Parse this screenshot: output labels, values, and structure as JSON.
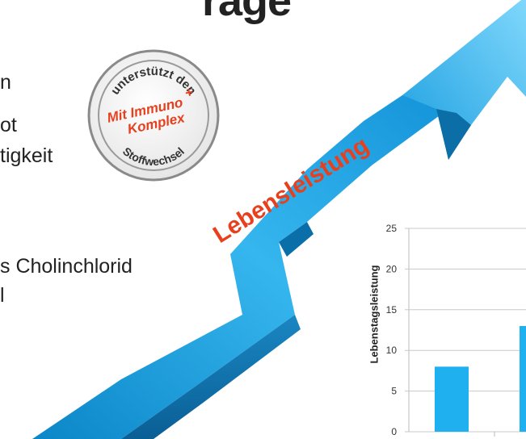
{
  "heading": {
    "fragment": "rage"
  },
  "bullets": [
    {
      "text": "n"
    },
    {
      "text": "ot"
    },
    {
      "text": "tigkeit"
    },
    {
      "text": "s Cholinchlorid"
    },
    {
      "text": "l"
    }
  ],
  "arrow": {
    "label": "Lebensleistung",
    "label_color": "#e8401e",
    "fill_color": "#1fa6e0"
  },
  "seal": {
    "top_arc": "unterstützt den",
    "center_line1": "Mit Immuno",
    "center_plus": "+",
    "center_line2": "Komplex",
    "bottom_arc": "Stoffwechsel",
    "accent_color": "#e8401e",
    "ring_color": "#8a8a8a"
  },
  "chart_data": {
    "type": "bar",
    "ylabel": "Lebenstagsleistung",
    "ylim": [
      0,
      25
    ],
    "yticks": [
      "0",
      "5",
      "10",
      "15",
      "20",
      "25"
    ],
    "values": [
      8,
      13
    ],
    "bar_color": "#1fb1ef",
    "grid": true
  }
}
